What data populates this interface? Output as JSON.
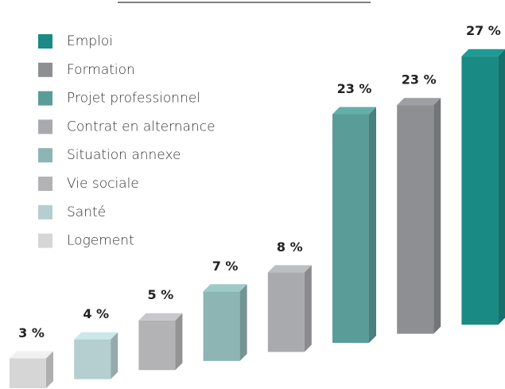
{
  "chart_data": {
    "type": "bar3d",
    "categories": [
      "Logement",
      "Santé",
      "Vie sociale",
      "Situation annexe",
      "Contrat en alternance",
      "Projet professionnel",
      "Formation",
      "Emploi"
    ],
    "values": [
      3,
      4,
      5,
      7,
      8,
      23,
      23,
      27
    ],
    "value_labels": [
      "3 %",
      "4 %",
      "5 %",
      "7 %",
      "8 %",
      "23 %",
      "23 %",
      "27 %"
    ],
    "colors": [
      "#d6d6d6",
      "#b5cfd0",
      "#b3b3b5",
      "#8db5b3",
      "#a9aaad",
      "#5a9c98",
      "#8e8f93",
      "#1a8a84"
    ],
    "legend": "top-left"
  }
}
